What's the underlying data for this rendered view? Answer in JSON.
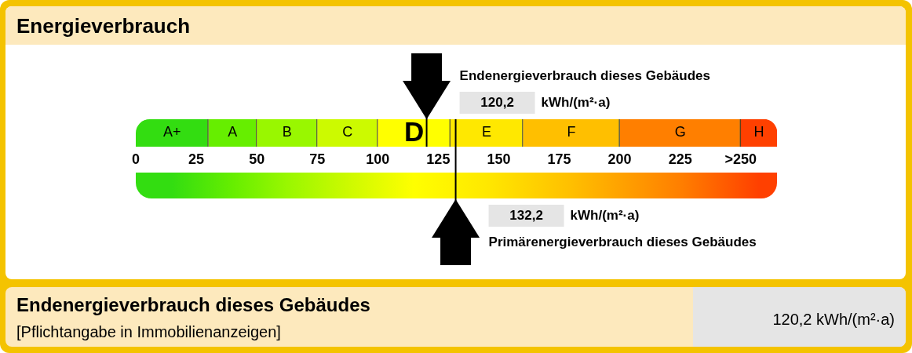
{
  "chart_data": [
    {
      "type": "bar",
      "orientation": "horizontal",
      "stacked": true,
      "title": "Energieverbrauch",
      "categories": [
        null
      ],
      "series": [
        {
          "name": "A+",
          "color": "#33dd11",
          "values": [
            30
          ]
        },
        {
          "name": "A",
          "color": "#66ee00",
          "values": [
            20
          ]
        },
        {
          "name": "B",
          "color": "#99f700",
          "values": [
            25
          ]
        },
        {
          "name": "C",
          "color": "#ccfa00",
          "values": [
            25
          ]
        },
        {
          "name": "D",
          "color": "#ffff00",
          "values": [
            30
          ]
        },
        {
          "name": "E",
          "color": "#ffe800",
          "values": [
            30
          ]
        },
        {
          "name": "F",
          "color": "#ffbf00",
          "values": [
            40
          ]
        },
        {
          "name": "G",
          "color": "#ff7f00",
          "values": [
            50
          ]
        },
        {
          "name": "H",
          "color": "#ff4000",
          "values": [
            15
          ]
        }
      ],
      "xlim": [
        0,
        265
      ],
      "xticks": [
        0,
        25,
        50,
        75,
        100,
        125,
        150,
        175,
        200,
        225,
        {
          "value": 250,
          "label": ">250"
        }
      ],
      "tick_labels": "x",
      "ref_lines": [
        {
          "axis": "x",
          "value": 120.2,
          "label": "Endenergieverbrauch dieses Gebäudes",
          "color": "#000000"
        },
        {
          "axis": "x",
          "value": 132.2,
          "label": "Primärenergieverbrauch dieses Gebäudes",
          "color": "#000000"
        }
      ],
      "annotations": [
        "120,2",
        "kWh/(m²·a)",
        "132,2",
        "kWh/(m²·a)"
      ]
    },
    {
      "type": "other",
      "title": "Endenergieverbrauch dieses Gebäudes",
      "subtitle": "[Pflichtangabe in Immobilienanzeigen]",
      "annotations": [
        "120,2 kWh/(m²·a)"
      ]
    }
  ]
}
